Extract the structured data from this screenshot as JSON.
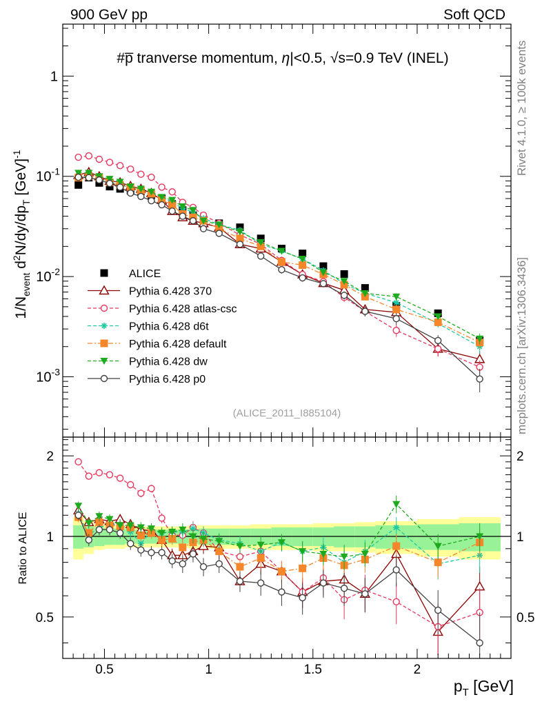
{
  "header": {
    "left": "900 GeV pp",
    "right": "Soft QCD"
  },
  "side": {
    "top": "Rivet 4.1.0, ≥ 100k events",
    "bottom": "mcplots.cern.ch [arXiv:1306.3436]"
  },
  "chart_data": {
    "type": "scatter",
    "title": "#p̅ tranverse momentum, |η|<0.5, √s=0.9 TeV (INEL)",
    "title_main": "#p̅ tranverse momentum, ",
    "title_eta": "η",
    "title_cut": "|<0.5, ",
    "title_sqrt": "√",
    "title_s": "s",
    "title_end": "=0.9 TeV (INEL)",
    "analysis_tag": "(ALICE_2011_I885104)",
    "xlabel": "p",
    "xlabel_sub": "T",
    "xlabel_unit": " [GeV]",
    "ylabel": "1/N_event d²N/dy/dp_T [GeV]⁻¹",
    "ratio_ylabel": "Ratio to ALICE",
    "xlim": [
      0.3,
      2.45
    ],
    "ylim": [
      0.00025,
      3.3
    ],
    "ratio_ylim": [
      0.35,
      2.35
    ],
    "x_ticks": [
      "0.5",
      "1",
      "1.5",
      "2"
    ],
    "x_tick_values": [
      0.5,
      1,
      1.5,
      2
    ],
    "y_ticks": [
      "1",
      "10⁻¹",
      "10⁻²",
      "10⁻³"
    ],
    "ratio_ticks": [
      "2",
      "1",
      "0.5"
    ],
    "x": [
      0.375,
      0.425,
      0.475,
      0.525,
      0.575,
      0.625,
      0.675,
      0.725,
      0.775,
      0.825,
      0.875,
      0.925,
      0.975,
      1.05,
      1.15,
      1.25,
      1.35,
      1.45,
      1.55,
      1.65,
      1.75,
      1.9,
      2.1,
      2.3
    ],
    "band_x_edges": [
      0.35,
      0.4,
      0.45,
      0.5,
      0.55,
      0.6,
      0.65,
      0.7,
      0.75,
      0.8,
      0.85,
      0.9,
      0.95,
      1.0,
      1.1,
      1.2,
      1.3,
      1.4,
      1.5,
      1.6,
      1.7,
      1.8,
      2.0,
      2.2,
      2.4
    ],
    "band_green_halfwidth": [
      0.1,
      0.09,
      0.08,
      0.07,
      0.07,
      0.06,
      0.06,
      0.06,
      0.06,
      0.06,
      0.06,
      0.06,
      0.07,
      0.07,
      0.07,
      0.07,
      0.08,
      0.08,
      0.08,
      0.09,
      0.09,
      0.1,
      0.11,
      0.12
    ],
    "band_yellow_halfwidth": [
      0.18,
      0.14,
      0.11,
      0.1,
      0.1,
      0.09,
      0.09,
      0.09,
      0.09,
      0.09,
      0.09,
      0.1,
      0.1,
      0.1,
      0.1,
      0.11,
      0.11,
      0.11,
      0.12,
      0.12,
      0.13,
      0.14,
      0.16,
      0.18
    ],
    "series": [
      {
        "name": "ALICE",
        "label": "ALICE",
        "color": "#000000",
        "marker": "square",
        "line": "none",
        "values": [
          0.082,
          0.097,
          0.086,
          0.079,
          0.075,
          0.072,
          0.071,
          0.065,
          0.06,
          0.053,
          0.046,
          0.041,
          0.037,
          0.034,
          0.031,
          0.024,
          0.019,
          0.017,
          0.0127,
          0.0106,
          0.0077,
          0.0051,
          0.0043,
          0.0023
        ],
        "errors": [
          0,
          0,
          0,
          0,
          0,
          0,
          0,
          0,
          0,
          0,
          0,
          0,
          0,
          0,
          0,
          0,
          0,
          0,
          0,
          0,
          0,
          0,
          0,
          0
        ],
        "ratio": [
          1,
          1,
          1,
          1,
          1,
          1,
          1,
          1,
          1,
          1,
          1,
          1,
          1,
          1,
          1,
          1,
          1,
          1,
          1,
          1,
          1,
          1,
          1,
          1
        ],
        "ratio_err": [
          0,
          0,
          0,
          0,
          0,
          0,
          0,
          0,
          0,
          0,
          0,
          0,
          0,
          0,
          0,
          0,
          0,
          0,
          0,
          0,
          0,
          0,
          0,
          0
        ]
      },
      {
        "name": "Pythia 6.428 370",
        "label": "Pythia 6.428 370",
        "color": "#8b0000",
        "marker": "triangle-open",
        "line": "solid",
        "values": [
          0.103,
          0.11,
          0.1,
          0.09,
          0.087,
          0.08,
          0.075,
          0.068,
          0.058,
          0.045,
          0.039,
          0.036,
          0.034,
          0.031,
          0.021,
          0.019,
          0.014,
          0.0105,
          0.0086,
          0.0073,
          0.0047,
          0.0044,
          0.0019,
          0.0015
        ],
        "errors": [
          0.005,
          0.005,
          0.005,
          0.004,
          0.004,
          0.004,
          0.004,
          0.003,
          0.003,
          0.003,
          0.002,
          0.002,
          0.002,
          0.002,
          0.0015,
          0.0012,
          0.001,
          0.0008,
          0.0007,
          0.0006,
          0.0005,
          0.0005,
          0.0003,
          0.0003
        ],
        "ratio": [
          1.25,
          1.13,
          1.16,
          1.14,
          1.16,
          1.11,
          1.06,
          1.05,
          0.97,
          0.85,
          0.85,
          0.88,
          0.92,
          0.91,
          0.68,
          0.79,
          0.74,
          0.62,
          0.68,
          0.69,
          0.61,
          0.86,
          0.44,
          0.65
        ],
        "ratio_err": [
          0.05,
          0.05,
          0.05,
          0.05,
          0.05,
          0.05,
          0.05,
          0.05,
          0.05,
          0.05,
          0.06,
          0.06,
          0.06,
          0.06,
          0.06,
          0.07,
          0.07,
          0.08,
          0.08,
          0.09,
          0.09,
          0.1,
          0.1,
          0.12
        ]
      },
      {
        "name": "Pythia 6.428 atlas-csc",
        "label": "Pythia 6.428 atlas-csc",
        "color": "#e8365d",
        "marker": "circle-open",
        "line": "dashed",
        "values": [
          0.155,
          0.16,
          0.148,
          0.138,
          0.128,
          0.118,
          0.105,
          0.098,
          0.078,
          0.07,
          0.055,
          0.049,
          0.041,
          0.034,
          0.026,
          0.021,
          0.0145,
          0.0105,
          0.0089,
          0.0062,
          0.0045,
          0.0029,
          0.0019,
          0.00125
        ],
        "errors": [
          0.006,
          0.006,
          0.005,
          0.005,
          0.005,
          0.004,
          0.004,
          0.004,
          0.003,
          0.003,
          0.003,
          0.002,
          0.002,
          0.002,
          0.0015,
          0.0012,
          0.001,
          0.0008,
          0.0007,
          0.0006,
          0.0005,
          0.0004,
          0.0003,
          0.0002
        ],
        "ratio": [
          1.9,
          1.68,
          1.73,
          1.7,
          1.65,
          1.56,
          1.45,
          1.51,
          1.17,
          1.01,
          1.01,
          1.08,
          1.03,
          0.88,
          0.84,
          0.88,
          0.74,
          0.62,
          0.7,
          0.58,
          0.63,
          0.57,
          0.46,
          0.52
        ],
        "ratio_err": [
          0.05,
          0.05,
          0.05,
          0.05,
          0.05,
          0.05,
          0.05,
          0.05,
          0.05,
          0.05,
          0.06,
          0.06,
          0.06,
          0.06,
          0.06,
          0.07,
          0.07,
          0.08,
          0.08,
          0.09,
          0.09,
          0.1,
          0.1,
          0.12
        ]
      },
      {
        "name": "Pythia 6.428 d6t",
        "label": "Pythia 6.428 d6t",
        "color": "#20c9a0",
        "marker": "star",
        "line": "dashed",
        "values": [
          0.1,
          0.098,
          0.093,
          0.088,
          0.083,
          0.075,
          0.067,
          0.068,
          0.062,
          0.055,
          0.048,
          0.044,
          0.038,
          0.033,
          0.029,
          0.021,
          0.018,
          0.015,
          0.0115,
          0.0085,
          0.0068,
          0.0055,
          0.0034,
          0.002
        ],
        "errors": [
          0.004,
          0.004,
          0.004,
          0.004,
          0.004,
          0.003,
          0.003,
          0.003,
          0.003,
          0.003,
          0.002,
          0.002,
          0.002,
          0.002,
          0.0015,
          0.0012,
          0.001,
          0.0008,
          0.0007,
          0.0006,
          0.0005,
          0.0005,
          0.0003,
          0.0003
        ],
        "ratio": [
          1.22,
          1.01,
          1.08,
          1.11,
          1.11,
          1.04,
          0.94,
          1.05,
          1.03,
          1.04,
          1.04,
          1.07,
          1.03,
          0.97,
          0.94,
          0.88,
          0.95,
          0.88,
          0.91,
          0.8,
          0.88,
          1.08,
          0.79,
          0.85
        ],
        "ratio_err": [
          0.05,
          0.05,
          0.05,
          0.05,
          0.05,
          0.05,
          0.05,
          0.05,
          0.05,
          0.05,
          0.06,
          0.06,
          0.06,
          0.06,
          0.06,
          0.07,
          0.07,
          0.08,
          0.08,
          0.09,
          0.09,
          0.1,
          0.1,
          0.12
        ]
      },
      {
        "name": "Pythia 6.428 default",
        "label": "Pythia 6.428 default",
        "color": "#f5862a",
        "marker": "square",
        "line": "dashdot",
        "values": [
          0.097,
          0.1,
          0.097,
          0.087,
          0.082,
          0.078,
          0.072,
          0.067,
          0.058,
          0.052,
          0.042,
          0.039,
          0.036,
          0.03,
          0.024,
          0.02,
          0.014,
          0.013,
          0.0105,
          0.0083,
          0.0063,
          0.0047,
          0.0035,
          0.0022
        ],
        "errors": [
          0.004,
          0.004,
          0.004,
          0.004,
          0.004,
          0.003,
          0.003,
          0.003,
          0.003,
          0.003,
          0.002,
          0.002,
          0.002,
          0.002,
          0.0015,
          0.0012,
          0.001,
          0.0008,
          0.0007,
          0.0006,
          0.0005,
          0.0005,
          0.0003,
          0.0003
        ],
        "ratio": [
          1.18,
          1.03,
          1.13,
          1.1,
          1.09,
          1.08,
          1.01,
          1.03,
          0.97,
          0.98,
          0.91,
          0.95,
          0.97,
          0.88,
          0.77,
          0.83,
          0.74,
          0.76,
          0.83,
          0.78,
          0.82,
          0.92,
          0.8,
          0.95
        ],
        "ratio_err": [
          0.05,
          0.05,
          0.05,
          0.05,
          0.05,
          0.05,
          0.05,
          0.05,
          0.05,
          0.05,
          0.06,
          0.06,
          0.06,
          0.06,
          0.06,
          0.07,
          0.07,
          0.08,
          0.08,
          0.09,
          0.09,
          0.1,
          0.1,
          0.12
        ]
      },
      {
        "name": "Pythia 6.428 dw",
        "label": "Pythia 6.428 dw",
        "color": "#1eaa1e",
        "marker": "triangle-down",
        "line": "dashed",
        "values": [
          0.108,
          0.108,
          0.1,
          0.094,
          0.088,
          0.079,
          0.075,
          0.07,
          0.062,
          0.058,
          0.05,
          0.046,
          0.036,
          0.033,
          0.028,
          0.022,
          0.018,
          0.015,
          0.011,
          0.009,
          0.0068,
          0.0063,
          0.004,
          0.0024
        ],
        "errors": [
          0.004,
          0.004,
          0.004,
          0.004,
          0.004,
          0.003,
          0.003,
          0.003,
          0.003,
          0.003,
          0.002,
          0.002,
          0.002,
          0.002,
          0.0015,
          0.0012,
          0.001,
          0.0008,
          0.0007,
          0.0006,
          0.0005,
          0.0005,
          0.0003,
          0.0003
        ],
        "ratio": [
          1.3,
          1.12,
          1.19,
          1.16,
          1.1,
          1.1,
          1.08,
          1.07,
          1.03,
          1.04,
          1.06,
          1.0,
          0.98,
          0.96,
          0.92,
          0.93,
          0.95,
          0.88,
          0.86,
          0.84,
          0.86,
          1.32,
          0.92,
          1.0
        ],
        "ratio_err": [
          0.05,
          0.05,
          0.05,
          0.05,
          0.05,
          0.05,
          0.05,
          0.05,
          0.05,
          0.05,
          0.06,
          0.06,
          0.06,
          0.06,
          0.06,
          0.07,
          0.07,
          0.08,
          0.08,
          0.09,
          0.09,
          0.1,
          0.1,
          0.12
        ]
      },
      {
        "name": "Pythia 6.428 p0",
        "label": "Pythia 6.428 p0",
        "color": "#404040",
        "marker": "circle-open",
        "line": "solid",
        "values": [
          0.098,
          0.097,
          0.092,
          0.085,
          0.078,
          0.068,
          0.063,
          0.057,
          0.052,
          0.045,
          0.04,
          0.036,
          0.03,
          0.027,
          0.021,
          0.016,
          0.0117,
          0.0097,
          0.0085,
          0.0065,
          0.0045,
          0.0038,
          0.0023,
          0.00095
        ],
        "errors": [
          0.004,
          0.004,
          0.004,
          0.004,
          0.004,
          0.003,
          0.003,
          0.003,
          0.003,
          0.003,
          0.002,
          0.002,
          0.002,
          0.002,
          0.0015,
          0.0012,
          0.001,
          0.0008,
          0.0007,
          0.0006,
          0.0005,
          0.0005,
          0.0003,
          0.00025
        ],
        "ratio": [
          1.2,
          0.97,
          1.06,
          1.06,
          1.03,
          0.94,
          0.89,
          0.87,
          0.87,
          0.81,
          0.79,
          0.86,
          0.77,
          0.79,
          0.68,
          0.67,
          0.62,
          0.59,
          0.67,
          0.64,
          0.61,
          0.75,
          0.53,
          0.4
        ],
        "ratio_err": [
          0.05,
          0.05,
          0.05,
          0.05,
          0.05,
          0.05,
          0.05,
          0.05,
          0.05,
          0.05,
          0.06,
          0.06,
          0.06,
          0.06,
          0.06,
          0.07,
          0.07,
          0.08,
          0.08,
          0.09,
          0.09,
          0.1,
          0.1,
          0.12
        ]
      }
    ]
  }
}
